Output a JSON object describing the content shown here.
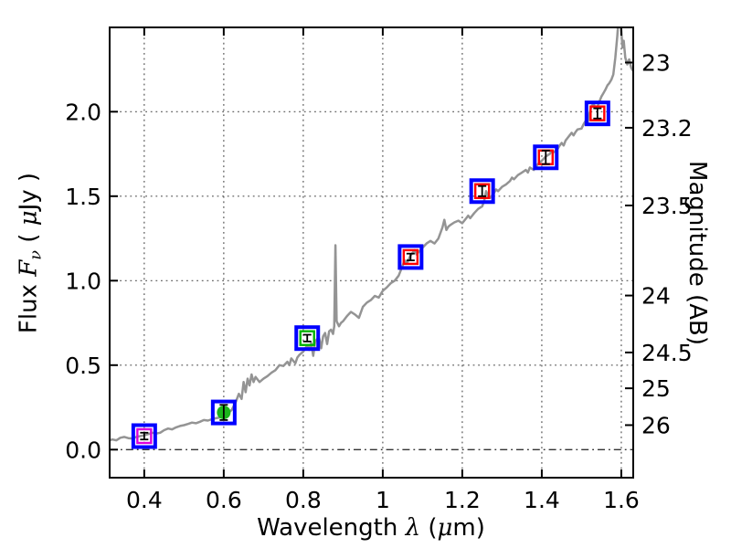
{
  "chart_data": {
    "type": "line+scatter",
    "title": "",
    "xlabel": "Wavelength λ (μm)",
    "xlabel_parts": [
      {
        "text": "Wavelength  ",
        "math": false,
        "sub": false
      },
      {
        "text": "λ",
        "math": true,
        "sub": false
      },
      {
        "text": " (",
        "math": false,
        "sub": false
      },
      {
        "text": "μ",
        "math": true,
        "sub": false
      },
      {
        "text": "m)",
        "math": false,
        "sub": false
      }
    ],
    "ylabel_left": "Flux Fν ( μJy )",
    "ylabel_left_parts": [
      {
        "text": "Flux  ",
        "math": false,
        "sub": false
      },
      {
        "text": "F",
        "math": true,
        "sub": false
      },
      {
        "text": "ν",
        "math": true,
        "sub": true
      },
      {
        "text": "  ( ",
        "math": false,
        "sub": false
      },
      {
        "text": "μ",
        "math": true,
        "sub": false
      },
      {
        "text": "Jy )",
        "math": false,
        "sub": false
      }
    ],
    "ylabel_right": "Magnitude (AB)",
    "xlim": [
      0.313,
      1.63
    ],
    "ylim_flux": [
      -0.166,
      2.499
    ],
    "grid": true,
    "x_ticks": [
      0.4,
      0.6,
      0.8,
      1.0,
      1.2,
      1.4,
      1.6
    ],
    "x_tick_labels": [
      "0.4",
      "0.6",
      "0.8",
      "1",
      "1.2",
      "1.4",
      "1.6"
    ],
    "y_ticks_flux": [
      0.0,
      0.5,
      1.0,
      1.5,
      2.0
    ],
    "y_tick_labels_flux": [
      "0.0",
      "0.5",
      "1.0",
      "1.5",
      "2.0"
    ],
    "right_axis_ticks": [
      {
        "label": "23",
        "flux": 2.291
      },
      {
        "label": "23.2",
        "flux": 1.905
      },
      {
        "label": "23.5",
        "flux": 1.445
      },
      {
        "label": "24",
        "flux": 0.912
      },
      {
        "label": "24.5",
        "flux": 0.575
      },
      {
        "label": "25",
        "flux": 0.363
      },
      {
        "label": "26",
        "flux": 0.145
      }
    ],
    "colors": {
      "spectrum": "#949494",
      "grid": "#555555",
      "zero_line": "#333333",
      "frame": "#000000",
      "outer_marker_blue": "#0000ff",
      "red": "#ff0000",
      "green": "#00b300",
      "green_fill": "#1cb31c",
      "magenta": "#dd00dd",
      "errorbar": "#000000"
    },
    "photometry": [
      {
        "x": 0.4,
        "flux": 0.08,
        "err": 0.02,
        "inner": "square",
        "inner_color": "#dd00dd"
      },
      {
        "x": 0.6,
        "flux": 0.22,
        "err": 0.045,
        "inner": "circle",
        "inner_color": "#1cb31c"
      },
      {
        "x": 0.81,
        "flux": 0.66,
        "err": 0.02,
        "inner": "square",
        "inner_color": "#00b300"
      },
      {
        "x": 1.07,
        "flux": 1.14,
        "err": 0.02,
        "inner": "square",
        "inner_color": "#ff0000"
      },
      {
        "x": 1.25,
        "flux": 1.53,
        "err": 0.03,
        "inner": "square",
        "inner_color": "#ff0000"
      },
      {
        "x": 1.41,
        "flux": 1.73,
        "err": 0.04,
        "inner": "square",
        "inner_color": "#ff0000"
      },
      {
        "x": 1.54,
        "flux": 1.99,
        "err": 0.03,
        "inner": "square",
        "inner_color": "#ff0000"
      }
    ],
    "spectrum": {
      "name": "model-spectrum",
      "color": "#949494",
      "points": [
        [
          0.313,
          0.055
        ],
        [
          0.32,
          0.06
        ],
        [
          0.33,
          0.055
        ],
        [
          0.34,
          0.07
        ],
        [
          0.35,
          0.075
        ],
        [
          0.36,
          0.068
        ],
        [
          0.37,
          0.066
        ],
        [
          0.38,
          0.075
        ],
        [
          0.39,
          0.08
        ],
        [
          0.4,
          0.085
        ],
        [
          0.41,
          0.092
        ],
        [
          0.42,
          0.1
        ],
        [
          0.43,
          0.095
        ],
        [
          0.44,
          0.1
        ],
        [
          0.45,
          0.115
        ],
        [
          0.46,
          0.125
        ],
        [
          0.47,
          0.12
        ],
        [
          0.48,
          0.132
        ],
        [
          0.49,
          0.14
        ],
        [
          0.5,
          0.145
        ],
        [
          0.51,
          0.152
        ],
        [
          0.52,
          0.16
        ],
        [
          0.53,
          0.156
        ],
        [
          0.54,
          0.165
        ],
        [
          0.55,
          0.175
        ],
        [
          0.56,
          0.172
        ],
        [
          0.57,
          0.18
        ],
        [
          0.58,
          0.186
        ],
        [
          0.59,
          0.19
        ],
        [
          0.6,
          0.2
        ],
        [
          0.61,
          0.215
        ],
        [
          0.62,
          0.235
        ],
        [
          0.63,
          0.28
        ],
        [
          0.638,
          0.33
        ],
        [
          0.645,
          0.3
        ],
        [
          0.65,
          0.4
        ],
        [
          0.655,
          0.34
        ],
        [
          0.66,
          0.42
        ],
        [
          0.665,
          0.38
        ],
        [
          0.67,
          0.445
        ],
        [
          0.675,
          0.4
        ],
        [
          0.68,
          0.43
        ],
        [
          0.69,
          0.4
        ],
        [
          0.7,
          0.42
        ],
        [
          0.71,
          0.435
        ],
        [
          0.72,
          0.455
        ],
        [
          0.73,
          0.47
        ],
        [
          0.74,
          0.5
        ],
        [
          0.75,
          0.495
        ],
        [
          0.76,
          0.52
        ],
        [
          0.765,
          0.5
        ],
        [
          0.77,
          0.54
        ],
        [
          0.78,
          0.51
        ],
        [
          0.785,
          0.545
        ],
        [
          0.79,
          0.56
        ],
        [
          0.8,
          0.58
        ],
        [
          0.805,
          0.6
        ],
        [
          0.81,
          0.615
        ],
        [
          0.815,
          0.59
        ],
        [
          0.82,
          0.63
        ],
        [
          0.825,
          0.555
        ],
        [
          0.83,
          0.64
        ],
        [
          0.835,
          0.655
        ],
        [
          0.84,
          0.66
        ],
        [
          0.845,
          0.6
        ],
        [
          0.85,
          0.67
        ],
        [
          0.855,
          0.69
        ],
        [
          0.86,
          0.625
        ],
        [
          0.865,
          0.7
        ],
        [
          0.87,
          0.71
        ],
        [
          0.875,
          0.685
        ],
        [
          0.878,
          0.73
        ],
        [
          0.881,
          1.21
        ],
        [
          0.884,
          0.76
        ],
        [
          0.89,
          0.73
        ],
        [
          0.895,
          0.75
        ],
        [
          0.9,
          0.76
        ],
        [
          0.91,
          0.79
        ],
        [
          0.92,
          0.815
        ],
        [
          0.93,
          0.8
        ],
        [
          0.94,
          0.78
        ],
        [
          0.95,
          0.845
        ],
        [
          0.96,
          0.87
        ],
        [
          0.97,
          0.885
        ],
        [
          0.98,
          0.91
        ],
        [
          0.99,
          0.9
        ],
        [
          1.0,
          0.94
        ],
        [
          1.01,
          0.96
        ],
        [
          1.02,
          0.985
        ],
        [
          1.03,
          1.0
        ],
        [
          1.04,
          1.03
        ],
        [
          1.05,
          1.09
        ],
        [
          1.055,
          1.12
        ],
        [
          1.06,
          1.1
        ],
        [
          1.07,
          1.15
        ],
        [
          1.08,
          1.18
        ],
        [
          1.085,
          1.155
        ],
        [
          1.09,
          1.17
        ],
        [
          1.1,
          1.195
        ],
        [
          1.11,
          1.22
        ],
        [
          1.12,
          1.235
        ],
        [
          1.13,
          1.22
        ],
        [
          1.14,
          1.25
        ],
        [
          1.15,
          1.315
        ],
        [
          1.155,
          1.36
        ],
        [
          1.16,
          1.3
        ],
        [
          1.165,
          1.32
        ],
        [
          1.17,
          1.33
        ],
        [
          1.18,
          1.345
        ],
        [
          1.19,
          1.355
        ],
        [
          1.2,
          1.34
        ],
        [
          1.21,
          1.37
        ],
        [
          1.215,
          1.385
        ],
        [
          1.22,
          1.37
        ],
        [
          1.23,
          1.4
        ],
        [
          1.24,
          1.425
        ],
        [
          1.25,
          1.44
        ],
        [
          1.255,
          1.47
        ],
        [
          1.26,
          1.53
        ],
        [
          1.265,
          1.5
        ],
        [
          1.27,
          1.49
        ],
        [
          1.28,
          1.52
        ],
        [
          1.285,
          1.54
        ],
        [
          1.29,
          1.53
        ],
        [
          1.3,
          1.555
        ],
        [
          1.31,
          1.57
        ],
        [
          1.32,
          1.59
        ],
        [
          1.325,
          1.61
        ],
        [
          1.33,
          1.6
        ],
        [
          1.34,
          1.625
        ],
        [
          1.35,
          1.64
        ],
        [
          1.36,
          1.655
        ],
        [
          1.365,
          1.64
        ],
        [
          1.37,
          1.67
        ],
        [
          1.38,
          1.655
        ],
        [
          1.39,
          1.69
        ],
        [
          1.4,
          1.71
        ],
        [
          1.41,
          1.735
        ],
        [
          1.42,
          1.75
        ],
        [
          1.425,
          1.77
        ],
        [
          1.43,
          1.76
        ],
        [
          1.44,
          1.78
        ],
        [
          1.445,
          1.8
        ],
        [
          1.45,
          1.815
        ],
        [
          1.455,
          1.8
        ],
        [
          1.46,
          1.83
        ],
        [
          1.465,
          1.845
        ],
        [
          1.47,
          1.86
        ],
        [
          1.475,
          1.875
        ],
        [
          1.48,
          1.86
        ],
        [
          1.485,
          1.88
        ],
        [
          1.49,
          1.895
        ],
        [
          1.5,
          1.9
        ],
        [
          1.505,
          1.925
        ],
        [
          1.51,
          1.945
        ],
        [
          1.515,
          1.93
        ],
        [
          1.52,
          1.99
        ],
        [
          1.525,
          2.03
        ],
        [
          1.53,
          2.05
        ],
        [
          1.535,
          2.02
        ],
        [
          1.54,
          2.03
        ],
        [
          1.545,
          2.06
        ],
        [
          1.55,
          2.09
        ],
        [
          1.555,
          2.11
        ],
        [
          1.56,
          2.13
        ],
        [
          1.565,
          2.155
        ],
        [
          1.57,
          2.17
        ],
        [
          1.575,
          2.19
        ],
        [
          1.58,
          2.22
        ],
        [
          1.585,
          2.32
        ],
        [
          1.59,
          2.45
        ],
        [
          1.595,
          2.62
        ],
        [
          1.6,
          2.48
        ],
        [
          1.603,
          2.38
        ],
        [
          1.606,
          2.42
        ],
        [
          1.61,
          2.32
        ],
        [
          1.615,
          2.28
        ],
        [
          1.62,
          2.31
        ],
        [
          1.625,
          2.26
        ],
        [
          1.63,
          2.24
        ]
      ]
    }
  }
}
